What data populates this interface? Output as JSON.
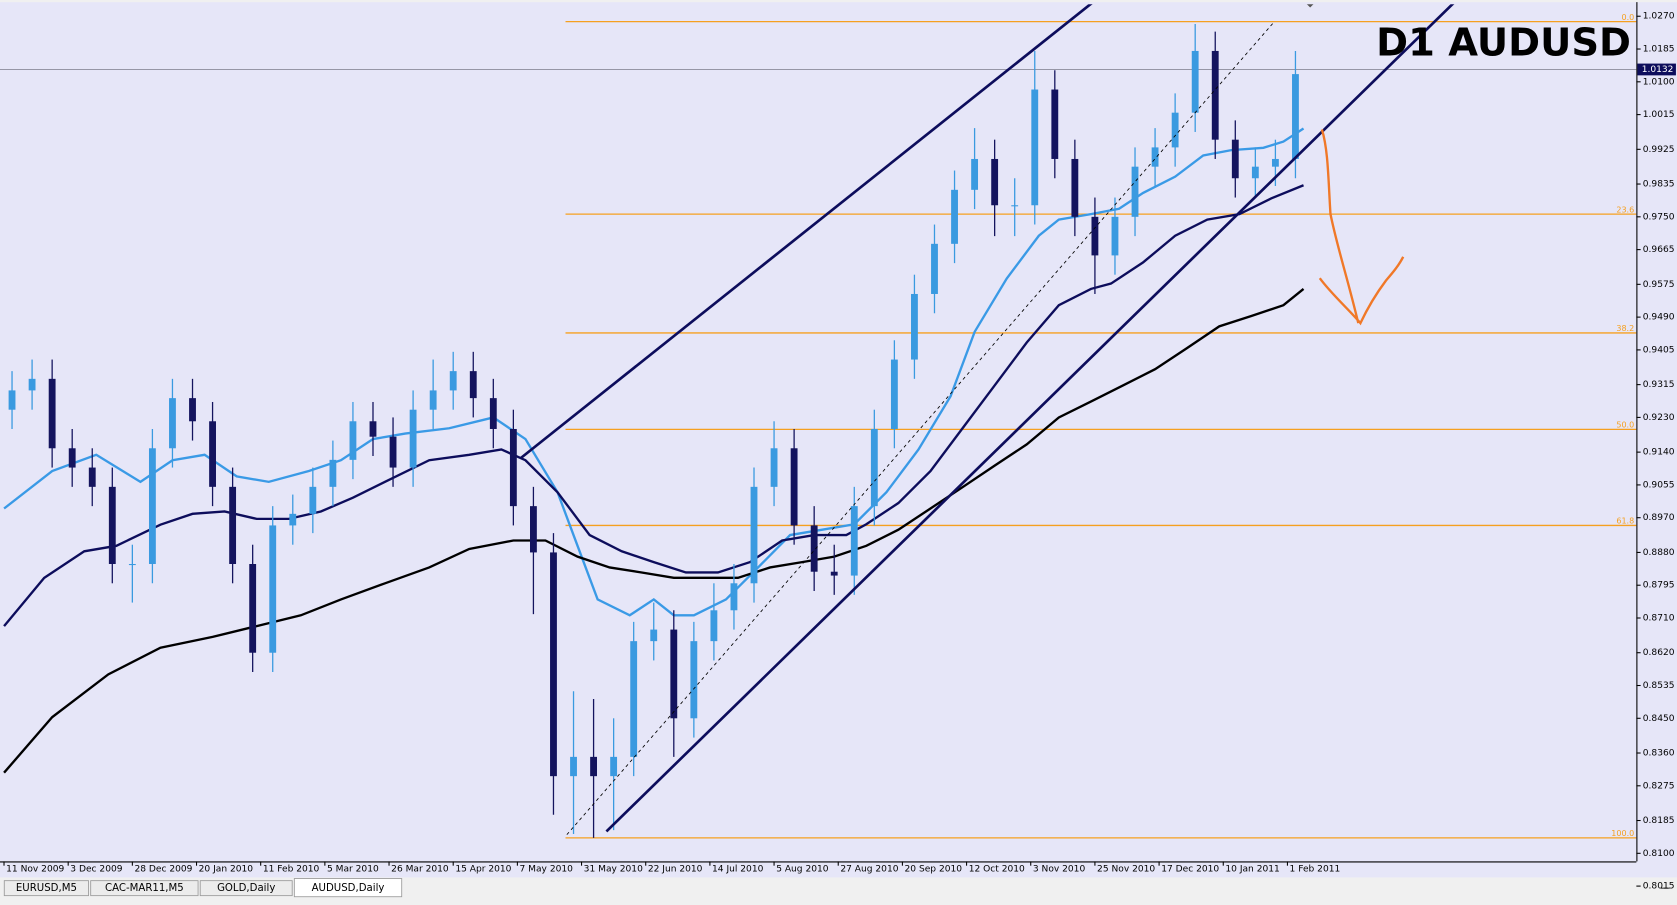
{
  "chart_data": {
    "type": "candlestick",
    "title": "D1 AUDUSD",
    "x": [
      3,
      8,
      13,
      18,
      23,
      28,
      33,
      38,
      43,
      48,
      53,
      58,
      63,
      68,
      73,
      78,
      83,
      88,
      93,
      98,
      103,
      108,
      113,
      118,
      123,
      128,
      133,
      138,
      143,
      148,
      153,
      158,
      163,
      168,
      173,
      178,
      183,
      188,
      193,
      198,
      203,
      208,
      213,
      218,
      223,
      228,
      233,
      238,
      243,
      248,
      253,
      258,
      263,
      268,
      273,
      278,
      283,
      288,
      293,
      298,
      303,
      308,
      313,
      318,
      323
    ],
    "open": [
      0.925,
      0.93,
      0.933,
      0.915,
      0.91,
      0.905,
      0.885,
      0.885,
      0.915,
      0.928,
      0.922,
      0.905,
      0.885,
      0.862,
      0.895,
      0.898,
      0.905,
      0.912,
      0.922,
      0.918,
      0.91,
      0.925,
      0.93,
      0.935,
      0.928,
      0.92,
      0.9,
      0.888,
      0.83,
      0.835,
      0.83,
      0.835,
      0.865,
      0.868,
      0.845,
      0.865,
      0.873,
      0.88,
      0.905,
      0.915,
      0.895,
      0.883,
      0.882,
      0.9,
      0.92,
      0.938,
      0.955,
      0.968,
      0.982,
      0.99,
      0.978,
      0.978,
      1.008,
      0.99,
      0.975,
      0.965,
      0.975,
      0.988,
      0.993,
      1.002,
      1.018,
      0.995,
      0.985,
      0.988,
      0.99
    ],
    "high": [
      0.935,
      0.938,
      0.938,
      0.92,
      0.915,
      0.91,
      0.89,
      0.92,
      0.933,
      0.933,
      0.927,
      0.91,
      0.89,
      0.9,
      0.903,
      0.91,
      0.917,
      0.927,
      0.927,
      0.923,
      0.93,
      0.938,
      0.94,
      0.94,
      0.933,
      0.925,
      0.905,
      0.893,
      0.852,
      0.85,
      0.845,
      0.87,
      0.875,
      0.873,
      0.87,
      0.88,
      0.885,
      0.91,
      0.922,
      0.92,
      0.9,
      0.89,
      0.905,
      0.925,
      0.943,
      0.96,
      0.973,
      0.987,
      0.998,
      0.995,
      0.985,
      1.018,
      1.013,
      0.995,
      0.98,
      0.98,
      0.993,
      0.998,
      1.007,
      1.025,
      1.023,
      1.0,
      0.993,
      0.995,
      1.018
    ],
    "low": [
      0.92,
      0.925,
      0.91,
      0.905,
      0.9,
      0.88,
      0.875,
      0.88,
      0.91,
      0.917,
      0.9,
      0.88,
      0.857,
      0.857,
      0.89,
      0.893,
      0.9,
      0.907,
      0.913,
      0.905,
      0.905,
      0.92,
      0.925,
      0.923,
      0.915,
      0.895,
      0.872,
      0.82,
      0.815,
      0.814,
      0.816,
      0.83,
      0.86,
      0.835,
      0.84,
      0.86,
      0.868,
      0.875,
      0.9,
      0.89,
      0.878,
      0.877,
      0.877,
      0.895,
      0.915,
      0.933,
      0.95,
      0.963,
      0.977,
      0.97,
      0.97,
      0.973,
      0.985,
      0.97,
      0.955,
      0.96,
      0.97,
      0.983,
      0.988,
      0.997,
      0.99,
      0.98,
      0.98,
      0.983,
      0.985
    ],
    "close": [
      0.93,
      0.933,
      0.915,
      0.91,
      0.905,
      0.885,
      0.885,
      0.915,
      0.928,
      0.922,
      0.905,
      0.885,
      0.862,
      0.895,
      0.898,
      0.905,
      0.912,
      0.922,
      0.918,
      0.91,
      0.925,
      0.93,
      0.935,
      0.928,
      0.92,
      0.9,
      0.888,
      0.83,
      0.835,
      0.83,
      0.835,
      0.865,
      0.868,
      0.845,
      0.865,
      0.873,
      0.88,
      0.905,
      0.915,
      0.895,
      0.883,
      0.882,
      0.9,
      0.92,
      0.938,
      0.955,
      0.968,
      0.982,
      0.99,
      0.978,
      0.978,
      1.008,
      0.99,
      0.975,
      0.965,
      0.975,
      0.988,
      0.993,
      1.002,
      1.018,
      0.995,
      0.985,
      0.988,
      0.99,
      1.012
    ],
    "up_color": "#3a9ae0",
    "down_color": "#14145e",
    "overlays": [
      {
        "color": "#3a9ae6",
        "x": [
          1,
          13,
          24,
          35,
          43,
          51,
          59,
          67,
          77,
          85,
          93,
          101,
          112,
          123,
          131,
          139,
          144,
          149,
          157,
          163,
          168,
          173,
          181,
          189,
          197,
          205,
          213,
          221,
          229,
          237,
          243,
          251,
          259,
          264,
          272,
          279,
          285,
          293,
          300,
          307,
          315,
          320,
          325
        ],
        "values": [
          0.8994,
          0.9091,
          0.9133,
          0.9063,
          0.9119,
          0.9133,
          0.9077,
          0.9063,
          0.9091,
          0.9119,
          0.9174,
          0.9188,
          0.9202,
          0.923,
          0.9174,
          0.9036,
          0.8897,
          0.8758,
          0.8717,
          0.8758,
          0.8717,
          0.8717,
          0.8758,
          0.8841,
          0.8925,
          0.8939,
          0.8953,
          0.9036,
          0.9147,
          0.9285,
          0.9452,
          0.959,
          0.9701,
          0.9743,
          0.9757,
          0.9771,
          0.9812,
          0.9854,
          0.9909,
          0.9923,
          0.9929,
          0.9945,
          0.9979
        ]
      },
      {
        "color": "#0d0d5c",
        "x": [
          1,
          11,
          21,
          29,
          40,
          48,
          56,
          64,
          72,
          80,
          88,
          96,
          107,
          117,
          125,
          131,
          139,
          147,
          155,
          163,
          171,
          179,
          187,
          195,
          203,
          211,
          216,
          224,
          232,
          240,
          248,
          256,
          264,
          272,
          277,
          285,
          293,
          301,
          309,
          317,
          325
        ],
        "values": [
          0.8689,
          0.8814,
          0.8883,
          0.8897,
          0.8952,
          0.898,
          0.8986,
          0.8967,
          0.8967,
          0.8986,
          0.9022,
          0.9063,
          0.9119,
          0.9133,
          0.9147,
          0.9119,
          0.9036,
          0.8925,
          0.8883,
          0.8855,
          0.8828,
          0.8828,
          0.8855,
          0.8911,
          0.8925,
          0.8925,
          0.8953,
          0.9008,
          0.9091,
          0.9202,
          0.9313,
          0.9424,
          0.9521,
          0.9563,
          0.9577,
          0.9632,
          0.9701,
          0.9743,
          0.9757,
          0.9798,
          0.9832
        ]
      },
      {
        "color": "#000000",
        "x": [
          1,
          13,
          27,
          40,
          53,
          64,
          75,
          85,
          96,
          107,
          117,
          128,
          136,
          144,
          152,
          160,
          168,
          176,
          184,
          192,
          200,
          208,
          216,
          224,
          232,
          240,
          248,
          256,
          264,
          272,
          280,
          288,
          296,
          304,
          312,
          320,
          325
        ],
        "values": [
          0.8309,
          0.8453,
          0.8564,
          0.8633,
          0.8661,
          0.8689,
          0.8717,
          0.8758,
          0.88,
          0.8841,
          0.8889,
          0.8911,
          0.8911,
          0.8869,
          0.8841,
          0.8828,
          0.8814,
          0.8814,
          0.8814,
          0.8841,
          0.8855,
          0.8869,
          0.8897,
          0.8939,
          0.8994,
          0.9049,
          0.9105,
          0.916,
          0.923,
          0.9271,
          0.9313,
          0.9355,
          0.941,
          0.9466,
          0.9493,
          0.9521,
          0.9563
        ]
      }
    ],
    "fib_color": "#f5a020",
    "fib_start": 141,
    "fib_levels": [
      {
        "label": "0.0",
        "value": 1.0256
      },
      {
        "label": "23.6",
        "value": 0.9757
      },
      {
        "label": "38.2",
        "value": 0.9449
      },
      {
        "label": "50.0",
        "value": 0.9199
      },
      {
        "label": "61.8",
        "value": 0.895
      },
      {
        "label": "100.0",
        "value": 0.814
      }
    ],
    "current_price": 1.0132,
    "xlim": [
      0,
      408
    ],
    "ylim": [
      0.8079,
      1.0301
    ],
    "xticks": [
      {
        "value": 1,
        "label": "11 Nov 2009"
      },
      {
        "value": 17,
        "label": "3 Dec 2009"
      },
      {
        "value": 33,
        "label": "28 Dec 2009"
      },
      {
        "value": 49,
        "label": "20 Jan 2010"
      },
      {
        "value": 65,
        "label": "11 Feb 2010"
      },
      {
        "value": 81,
        "label": "5 Mar 2010"
      },
      {
        "value": 97,
        "label": "26 Mar 2010"
      },
      {
        "value": 113,
        "label": "15 Apr 2010"
      },
      {
        "value": 129,
        "label": "7 May 2010"
      },
      {
        "value": 145,
        "label": "31 May 2010"
      },
      {
        "value": 161,
        "label": "22 Jun 2010"
      },
      {
        "value": 177,
        "label": "14 Jul 2010"
      },
      {
        "value": 193,
        "label": "5 Aug 2010"
      },
      {
        "value": 209,
        "label": "27 Aug 2010"
      },
      {
        "value": 225,
        "label": "20 Sep 2010"
      },
      {
        "value": 241,
        "label": "12 Oct 2010"
      },
      {
        "value": 257,
        "label": "3 Nov 2010"
      },
      {
        "value": 273,
        "label": "25 Nov 2010"
      },
      {
        "value": 289,
        "label": "17 Dec 2010"
      },
      {
        "value": 305,
        "label": "10 Jan 2011"
      },
      {
        "value": 321,
        "label": "1 Feb 2011"
      }
    ],
    "yticks": [
      {
        "value": 1.027,
        "label": "1.0270"
      },
      1.0185,
      {
        "value": 1.01,
        "label": "1.0100"
      },
      1.0015,
      0.9925,
      0.9835,
      {
        "value": 0.975,
        "label": "0.9750"
      },
      0.9665,
      0.9575,
      {
        "value": 0.949,
        "label": "0.9490"
      },
      0.9405,
      0.9315,
      {
        "value": 0.923,
        "label": "0.9230"
      },
      {
        "value": 0.914,
        "label": "0.9140"
      },
      0.9055,
      {
        "value": 0.897,
        "label": "0.8970"
      },
      {
        "value": 0.888,
        "label": "0.8880"
      },
      0.8795,
      {
        "value": 0.871,
        "label": "0.8710"
      },
      {
        "value": 0.862,
        "label": "0.8620"
      },
      0.8535,
      {
        "value": 0.845,
        "label": "0.8450"
      },
      {
        "value": 0.836,
        "label": "0.8360"
      },
      0.8275,
      0.8185,
      {
        "value": 0.81,
        "label": "0.8100"
      },
      0.8015
    ]
  },
  "tabs": [
    "EURUSD,M5",
    "CAC-MAR11,M5",
    "GOLD,Daily",
    "AUDUSD,Daily"
  ]
}
